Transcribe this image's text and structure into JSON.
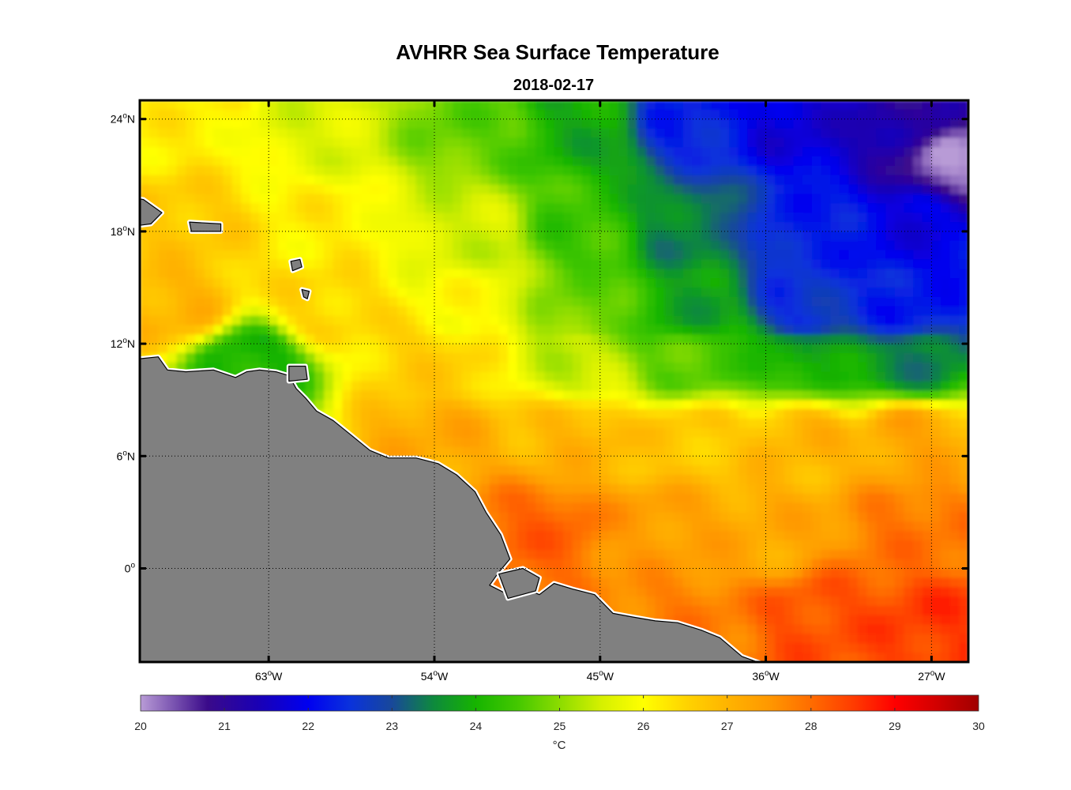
{
  "title": "AVHRR Sea Surface Temperature",
  "subtitle": "2018-02-17",
  "colors": {
    "land": "#808080",
    "coast": "#000000",
    "grid": "#000000"
  },
  "map": {
    "projection": "equirectangular",
    "lon_range": [
      -70,
      -25
    ],
    "lat_range": [
      -5,
      25
    ],
    "grid": "dotted",
    "lat_ticks": [
      {
        "value": 24,
        "num": "24",
        "hemi": "N"
      },
      {
        "value": 18,
        "num": "18",
        "hemi": "N"
      },
      {
        "value": 12,
        "num": "12",
        "hemi": "N"
      },
      {
        "value": 6,
        "num": "6",
        "hemi": "N"
      },
      {
        "value": 0,
        "num": "0",
        "hemi": ""
      }
    ],
    "lon_ticks": [
      {
        "value": -63,
        "num": "63",
        "hemi": "W"
      },
      {
        "value": -54,
        "num": "54",
        "hemi": "W"
      },
      {
        "value": -45,
        "num": "45",
        "hemi": "W"
      },
      {
        "value": -36,
        "num": "36",
        "hemi": "W"
      },
      {
        "value": -27,
        "num": "27",
        "hemi": "W"
      }
    ],
    "degree_symbol": "o"
  },
  "colorbar": {
    "unit": "°C",
    "min": 20,
    "max": 30,
    "ticks": [
      "20",
      "21",
      "22",
      "23",
      "24",
      "25",
      "26",
      "27",
      "28",
      "29",
      "30"
    ],
    "stops": [
      {
        "v": 20.0,
        "c": "#b89bd6"
      },
      {
        "v": 20.8,
        "c": "#3a0a8a"
      },
      {
        "v": 21.4,
        "c": "#1a00b4"
      },
      {
        "v": 22.0,
        "c": "#0000f0"
      },
      {
        "v": 22.5,
        "c": "#0a32dc"
      },
      {
        "v": 23.0,
        "c": "#18489a"
      },
      {
        "v": 23.5,
        "c": "#0e8a3c"
      },
      {
        "v": 24.0,
        "c": "#16b400"
      },
      {
        "v": 24.5,
        "c": "#44c800"
      },
      {
        "v": 25.0,
        "c": "#8cdc00"
      },
      {
        "v": 25.5,
        "c": "#d6f000"
      },
      {
        "v": 26.0,
        "c": "#ffff00"
      },
      {
        "v": 26.5,
        "c": "#ffd400"
      },
      {
        "v": 27.0,
        "c": "#ffb400"
      },
      {
        "v": 27.5,
        "c": "#ff9800"
      },
      {
        "v": 28.0,
        "c": "#ff6c00"
      },
      {
        "v": 28.5,
        "c": "#ff3c00"
      },
      {
        "v": 29.0,
        "c": "#ff0000"
      },
      {
        "v": 29.5,
        "c": "#d20000"
      },
      {
        "v": 30.0,
        "c": "#a00000"
      }
    ]
  },
  "chart_data": {
    "type": "heatmap",
    "title": "AVHRR Sea Surface Temperature",
    "subtitle": "2018-02-17",
    "x": "longitude",
    "y": "latitude",
    "value_unit": "°C",
    "value_range": [
      20,
      30
    ],
    "field_anchors": [
      {
        "lon": -68,
        "lat": 24,
        "t": 26.2
      },
      {
        "lon": -60,
        "lat": 24,
        "t": 25.6
      },
      {
        "lon": -52,
        "lat": 24,
        "t": 24.7
      },
      {
        "lon": -46,
        "lat": 24,
        "t": 23.9
      },
      {
        "lon": -40,
        "lat": 24,
        "t": 22.3
      },
      {
        "lon": -34,
        "lat": 24,
        "t": 21.7
      },
      {
        "lon": -28,
        "lat": 24,
        "t": 21.2
      },
      {
        "lon": -25.5,
        "lat": 22,
        "t": 20.2
      },
      {
        "lon": -68,
        "lat": 18,
        "t": 26.7
      },
      {
        "lon": -60,
        "lat": 18,
        "t": 26.2
      },
      {
        "lon": -52,
        "lat": 18,
        "t": 25.5
      },
      {
        "lon": -46,
        "lat": 18,
        "t": 24.4
      },
      {
        "lon": -40,
        "lat": 18,
        "t": 23.4
      },
      {
        "lon": -34,
        "lat": 18,
        "t": 22.3
      },
      {
        "lon": -28,
        "lat": 18,
        "t": 21.9
      },
      {
        "lon": -68,
        "lat": 14,
        "t": 27.0
      },
      {
        "lon": -60,
        "lat": 14,
        "t": 26.5
      },
      {
        "lon": -52,
        "lat": 14,
        "t": 26.0
      },
      {
        "lon": -46,
        "lat": 14,
        "t": 24.8
      },
      {
        "lon": -40,
        "lat": 14,
        "t": 23.8
      },
      {
        "lon": -34,
        "lat": 14,
        "t": 22.5
      },
      {
        "lon": -28,
        "lat": 14,
        "t": 22.2
      },
      {
        "lon": -64,
        "lat": 11,
        "t": 24.0
      },
      {
        "lon": -54,
        "lat": 11,
        "t": 26.6
      },
      {
        "lon": -46,
        "lat": 11,
        "t": 25.4
      },
      {
        "lon": -40,
        "lat": 11,
        "t": 24.6
      },
      {
        "lon": -34,
        "lat": 11,
        "t": 24.0
      },
      {
        "lon": -28,
        "lat": 11,
        "t": 23.5
      },
      {
        "lon": -54,
        "lat": 7,
        "t": 27.2
      },
      {
        "lon": -46,
        "lat": 7,
        "t": 27.0
      },
      {
        "lon": -40,
        "lat": 7,
        "t": 26.7
      },
      {
        "lon": -34,
        "lat": 7,
        "t": 27.0
      },
      {
        "lon": -28,
        "lat": 7,
        "t": 27.3
      },
      {
        "lon": -48,
        "lat": 2,
        "t": 28.1
      },
      {
        "lon": -42,
        "lat": 2,
        "t": 27.4
      },
      {
        "lon": -36,
        "lat": 2,
        "t": 27.2
      },
      {
        "lon": -28,
        "lat": 2,
        "t": 27.9
      },
      {
        "lon": -40,
        "lat": -3,
        "t": 27.8
      },
      {
        "lon": -33,
        "lat": -3,
        "t": 28.3
      },
      {
        "lon": -27,
        "lat": -3,
        "t": 28.5
      }
    ]
  }
}
